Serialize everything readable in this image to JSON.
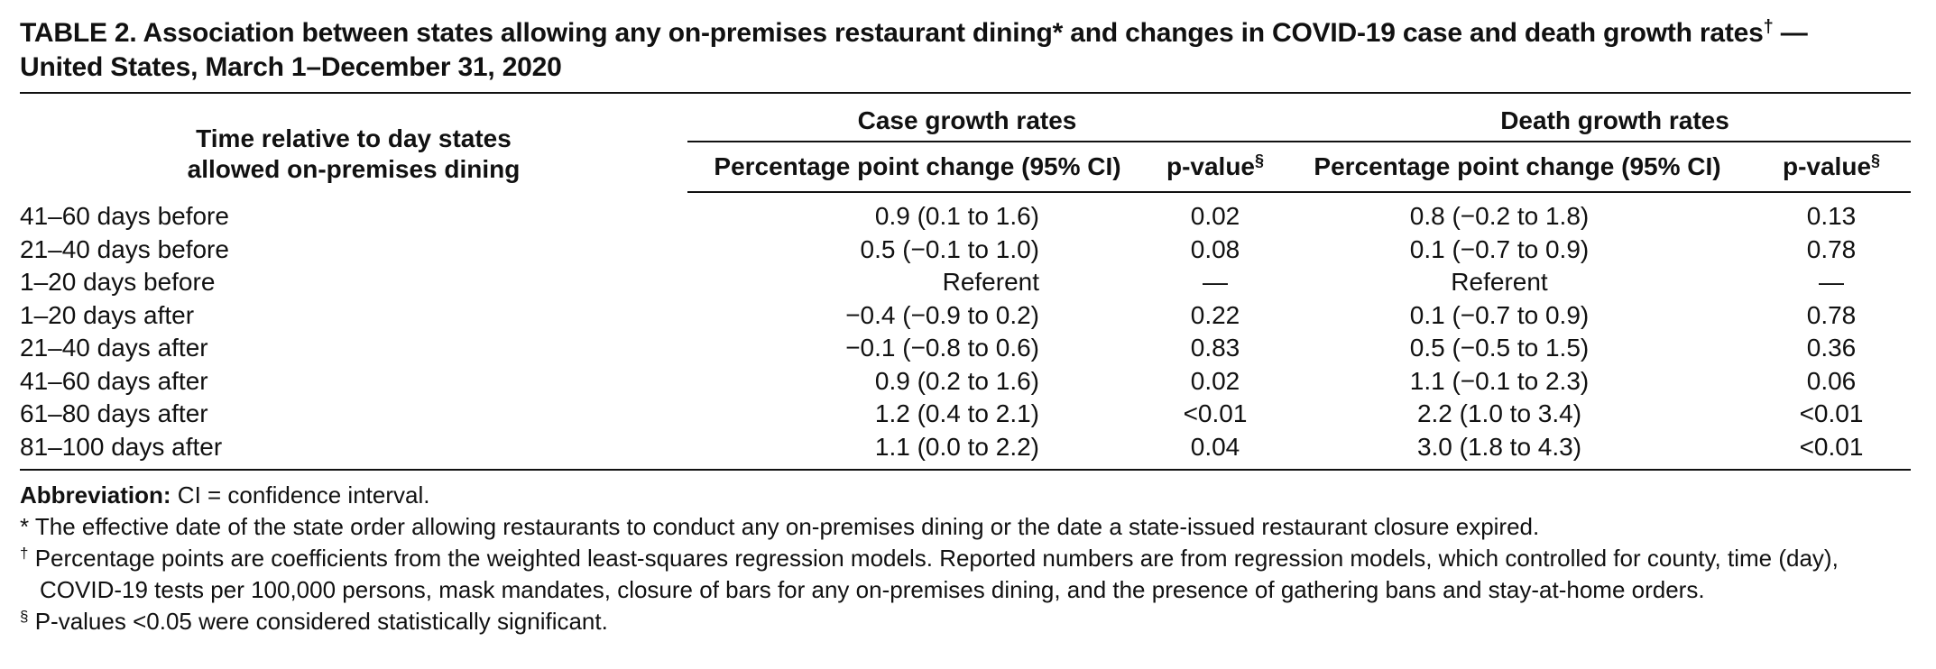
{
  "title_line1": "TABLE 2. Association between states allowing any on-premises restaurant dining",
  "title_mark1": "*",
  "title_line1b": " and changes in COVID-19 case and death growth rates",
  "title_mark2": "†",
  "title_line1c": " —",
  "title_line2": "United States, March 1–December 31, 2020",
  "header": {
    "row_label": "Time relative to day states allowed on-premises dining",
    "row_label_line1": "Time relative to day states",
    "row_label_line2": "allowed on-premises dining",
    "case_group": "Case growth rates",
    "death_group": "Death growth rates",
    "case_change": "Percentage point change (95% CI)",
    "case_p": "p-value",
    "death_change": "Percentage point change (95% CI)",
    "death_p": "p-value",
    "p_mark": "§"
  },
  "rows": [
    {
      "time": "41–60 days before",
      "case_change": "0.9 (0.1 to 1.6)",
      "case_p": "0.02",
      "death_change": "0.8 (−0.2 to 1.8)",
      "death_p": "0.13"
    },
    {
      "time": "21–40 days before",
      "case_change": "0.5 (−0.1 to 1.0)",
      "case_p": "0.08",
      "death_change": "0.1 (−0.7 to 0.9)",
      "death_p": "0.78"
    },
    {
      "time": "1–20 days before",
      "case_change": "Referent",
      "case_p": "—",
      "death_change": "Referent",
      "death_p": "—"
    },
    {
      "time": "1–20 days after",
      "case_change": "−0.4 (−0.9 to 0.2)",
      "case_p": "0.22",
      "death_change": "0.1 (−0.7 to 0.9)",
      "death_p": "0.78"
    },
    {
      "time": "21–40 days after",
      "case_change": "−0.1 (−0.8 to 0.6)",
      "case_p": "0.83",
      "death_change": "0.5 (−0.5 to 1.5)",
      "death_p": "0.36"
    },
    {
      "time": "41–60 days after",
      "case_change": "0.9 (0.2 to 1.6)",
      "case_p": "0.02",
      "death_change": "1.1 (−0.1 to 2.3)",
      "death_p": "0.06"
    },
    {
      "time": "61–80 days after",
      "case_change": "1.2 (0.4 to 2.1)",
      "case_p": "<0.01",
      "death_change": "2.2 (1.0 to 3.4)",
      "death_p": "<0.01"
    },
    {
      "time": "81–100 days after",
      "case_change": "1.1 (0.0 to 2.2)",
      "case_p": "0.04",
      "death_change": "3.0 (1.8 to 4.3)",
      "death_p": "<0.01"
    }
  ],
  "notes": {
    "abbrev_label": "Abbreviation:",
    "abbrev_text": " CI = confidence interval.",
    "star_mark": "*",
    "star_text": " The effective date of the state order allowing restaurants to conduct any on-premises dining or the date a state-issued restaurant closure expired.",
    "dagger_mark": "†",
    "dagger_text": " Percentage points are coefficients from the weighted least-squares regression models. Reported numbers are from regression models, which controlled for county, time (day), COVID-19 tests per 100,000 persons, mask mandates, closure of bars for any on-premises dining, and the presence of gathering bans and stay-at-home orders.",
    "section_mark": "§",
    "section_text": " P-values <0.05 were considered statistically significant."
  }
}
